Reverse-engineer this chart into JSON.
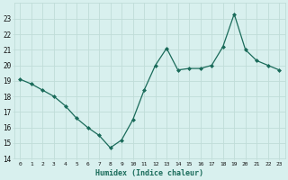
{
  "x": [
    0,
    1,
    2,
    3,
    4,
    5,
    6,
    7,
    8,
    9,
    10,
    11,
    12,
    13,
    14,
    15,
    16,
    17,
    18,
    19,
    20,
    21,
    22,
    23
  ],
  "y": [
    19.1,
    18.8,
    18.4,
    18.0,
    17.4,
    16.6,
    16.0,
    15.5,
    14.7,
    15.2,
    16.5,
    18.4,
    20.0,
    21.1,
    19.7,
    19.8,
    19.8,
    20.0,
    21.2,
    23.3,
    21.0,
    20.3,
    20.0,
    19.7
  ],
  "line_color": "#1a6b5a",
  "marker": "D",
  "marker_size": 2.0,
  "bg_color": "#d8f0ee",
  "grid_color": "#c0dcd8",
  "xlabel": "Humidex (Indice chaleur)",
  "ylim": [
    14,
    24
  ],
  "yticks": [
    14,
    15,
    16,
    17,
    18,
    19,
    20,
    21,
    22,
    23
  ],
  "xticks": [
    0,
    1,
    2,
    3,
    4,
    5,
    6,
    7,
    8,
    9,
    10,
    11,
    12,
    13,
    14,
    15,
    16,
    17,
    18,
    19,
    20,
    21,
    22,
    23
  ],
  "xlim": [
    -0.5,
    23.5
  ]
}
